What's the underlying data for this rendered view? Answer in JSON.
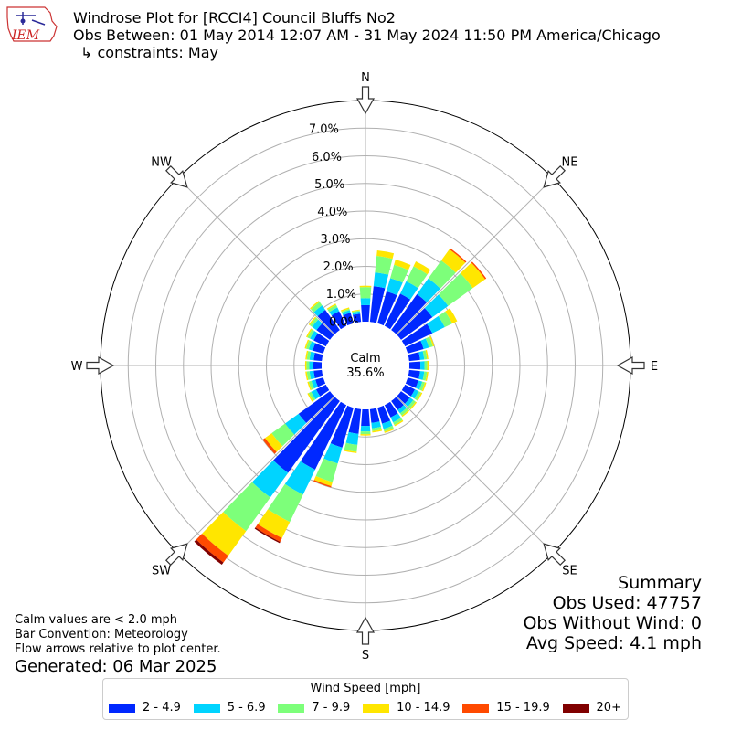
{
  "logo": {
    "text": "IEM"
  },
  "header": {
    "title": "Windrose Plot for [RCCI4] Council Bluffs No2",
    "obs_between": "Obs Between: 01 May 2014 12:07 AM - 31 May 2024 11:50 PM America/Chicago",
    "constraints": "↳ constraints: May"
  },
  "calm": {
    "label": "Calm",
    "value": "35.6%"
  },
  "summary": {
    "title": "Summary",
    "obs_used": "Obs Used: 47757",
    "obs_without_wind": "Obs Without Wind: 0",
    "avg_speed": "Avg Speed: 4.1 mph"
  },
  "notes": {
    "line1": "Calm values are < 2.0 mph",
    "line2": "Bar Convention: Meteorology",
    "line3": "Flow arrows relative to plot center."
  },
  "generated": "Generated: 06 Mar 2025",
  "legend": {
    "title": "Wind Speed [mph]",
    "items": [
      {
        "label": "2 - 4.9",
        "color": "#0028ff"
      },
      {
        "label": "5 - 6.9",
        "color": "#00d4ff"
      },
      {
        "label": "7 - 9.9",
        "color": "#7dff7a"
      },
      {
        "label": "10 - 14.9",
        "color": "#ffe600"
      },
      {
        "label": "15 - 19.9",
        "color": "#ff4a00"
      },
      {
        "label": "20+",
        "color": "#800000"
      }
    ]
  },
  "chart_data": {
    "type": "windrose",
    "units": "%",
    "rlim": [
      0,
      8
    ],
    "radial_ticks": [
      0,
      1,
      2,
      3,
      4,
      5,
      6,
      7
    ],
    "radial_tick_labels": [
      "0.0%",
      "1.0%",
      "2.0%",
      "3.0%",
      "4.0%",
      "5.0%",
      "6.0%",
      "7.0%"
    ],
    "direction_labels": [
      "N",
      "NE",
      "E",
      "SE",
      "S",
      "SW",
      "W",
      "NW"
    ],
    "speed_bins": [
      "2 - 4.9",
      "5 - 6.9",
      "7 - 9.9",
      "10 - 14.9",
      "15 - 19.9",
      "20+"
    ],
    "directions_deg": [
      0,
      10,
      20,
      30,
      40,
      50,
      60,
      70,
      80,
      90,
      100,
      110,
      120,
      130,
      140,
      150,
      160,
      170,
      180,
      190,
      200,
      210,
      220,
      230,
      240,
      250,
      260,
      270,
      280,
      290,
      300,
      310,
      320,
      330,
      340,
      350
    ],
    "cumulative": [
      [
        0.6,
        0.85,
        1.25,
        1.3,
        1.3,
        1.3
      ],
      [
        1.3,
        1.8,
        2.4,
        2.6,
        2.6,
        2.6
      ],
      [
        1.2,
        1.7,
        2.2,
        2.4,
        2.4,
        2.4
      ],
      [
        1.3,
        1.8,
        2.4,
        2.6,
        2.6,
        2.6
      ],
      [
        1.6,
        2.3,
        3.1,
        3.6,
        3.65,
        3.65
      ],
      [
        1.4,
        2.1,
        3.2,
        3.75,
        3.8,
        3.8
      ],
      [
        1.1,
        1.6,
        1.9,
        2.1,
        2.1,
        2.1
      ],
      [
        0.6,
        0.8,
        0.95,
        1.0,
        1.0,
        1.0
      ],
      [
        0.4,
        0.55,
        0.65,
        0.7,
        0.7,
        0.7
      ],
      [
        0.4,
        0.55,
        0.65,
        0.7,
        0.7,
        0.7
      ],
      [
        0.4,
        0.55,
        0.65,
        0.7,
        0.7,
        0.7
      ],
      [
        0.4,
        0.55,
        0.65,
        0.7,
        0.7,
        0.7
      ],
      [
        0.4,
        0.55,
        0.65,
        0.7,
        0.7,
        0.7
      ],
      [
        0.4,
        0.55,
        0.65,
        0.7,
        0.7,
        0.7
      ],
      [
        0.4,
        0.55,
        0.65,
        0.7,
        0.7,
        0.7
      ],
      [
        0.5,
        0.7,
        0.8,
        0.85,
        0.85,
        0.85
      ],
      [
        0.6,
        0.8,
        0.9,
        0.95,
        0.95,
        0.95
      ],
      [
        0.5,
        0.7,
        0.8,
        0.85,
        0.85,
        0.85
      ],
      [
        0.6,
        0.8,
        0.9,
        0.95,
        0.95,
        0.95
      ],
      [
        0.9,
        1.3,
        1.55,
        1.6,
        1.6,
        1.6
      ],
      [
        1.5,
        2.1,
        2.8,
        2.95,
        3.0,
        3.0
      ],
      [
        2.6,
        3.6,
        4.7,
        5.35,
        5.5,
        5.55
      ],
      [
        3.2,
        4.3,
        5.8,
        6.9,
        7.2,
        7.3
      ],
      [
        1.4,
        2.0,
        2.6,
        2.9,
        3.0,
        3.0
      ],
      [
        0.4,
        0.6,
        0.7,
        0.75,
        0.75,
        0.75
      ],
      [
        0.3,
        0.45,
        0.55,
        0.6,
        0.6,
        0.6
      ],
      [
        0.3,
        0.45,
        0.55,
        0.6,
        0.6,
        0.6
      ],
      [
        0.3,
        0.45,
        0.55,
        0.6,
        0.6,
        0.6
      ],
      [
        0.3,
        0.45,
        0.55,
        0.6,
        0.6,
        0.6
      ],
      [
        0.4,
        0.55,
        0.65,
        0.7,
        0.7,
        0.7
      ],
      [
        0.5,
        0.65,
        0.75,
        0.8,
        0.8,
        0.8
      ],
      [
        0.6,
        0.8,
        0.9,
        0.95,
        0.95,
        0.95
      ],
      [
        0.9,
        1.1,
        1.25,
        1.3,
        1.3,
        1.3
      ],
      [
        0.6,
        0.75,
        0.85,
        0.9,
        0.9,
        0.9
      ],
      [
        0.4,
        0.5,
        0.55,
        0.6,
        0.6,
        0.6
      ],
      [
        0.3,
        0.38,
        0.42,
        0.45,
        0.45,
        0.45
      ]
    ]
  }
}
